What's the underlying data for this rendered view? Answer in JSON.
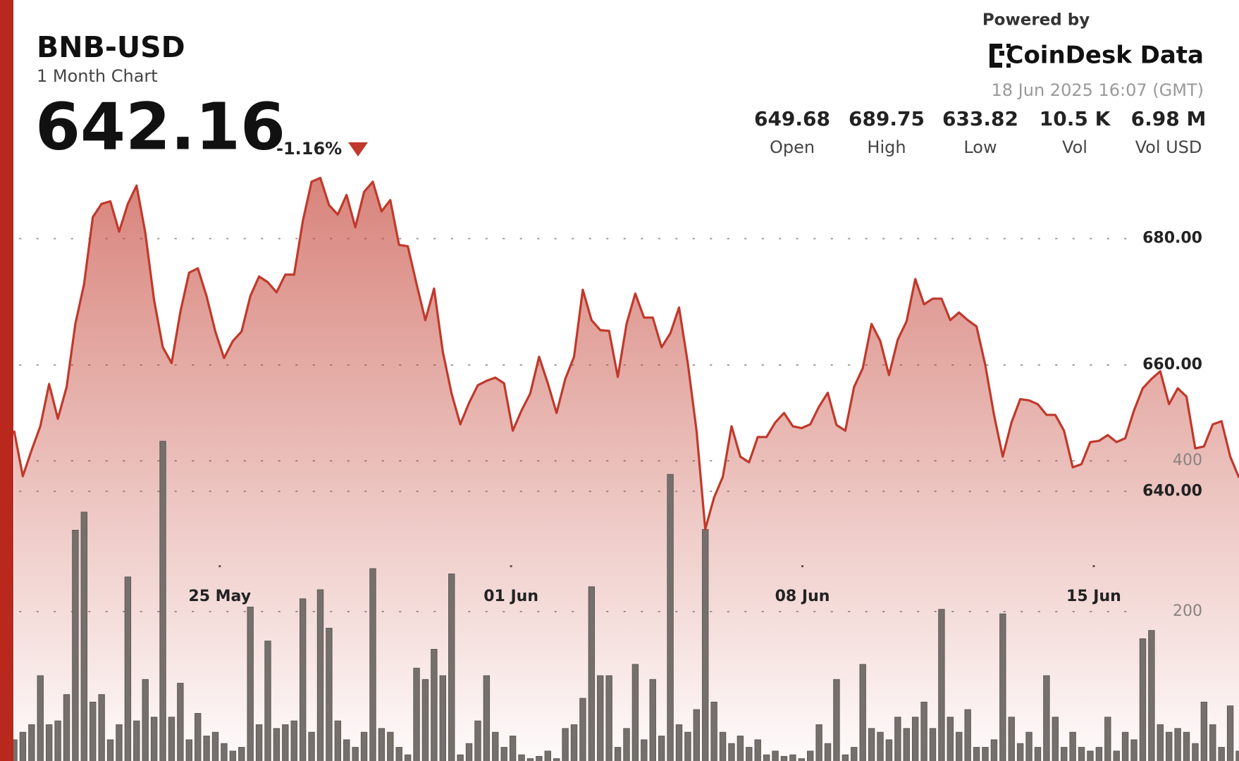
{
  "header": {
    "symbol": "BNB-USD",
    "subtitle": "1 Month Chart",
    "price": "642.16",
    "change": "-1.16%",
    "powered_by": "Powered by",
    "brand": "CoinDesk Data",
    "timestamp": "18 Jun 2025 16:07 (GMT)",
    "stats": [
      {
        "value": "649.68",
        "label": "Open"
      },
      {
        "value": "689.75",
        "label": "High"
      },
      {
        "value": "633.82",
        "label": "Low"
      },
      {
        "value": "10.5 K",
        "label": "Vol"
      },
      {
        "value": "6.98 M",
        "label": "Vol USD"
      }
    ]
  },
  "chart_data": {
    "type": "line",
    "xlim": [
      0,
      140
    ],
    "xticks": [
      {
        "value": 23.5,
        "label": "25 May"
      },
      {
        "value": 56.8,
        "label": "01 Jun"
      },
      {
        "value": 90.1,
        "label": "08 Jun"
      },
      {
        "value": 123.4,
        "label": "15 Jun"
      }
    ],
    "ylim": [
      600,
      692
    ],
    "yticks": [
      {
        "value": 640,
        "label": "640.00"
      },
      {
        "value": 660,
        "label": "660.00"
      },
      {
        "value": 680,
        "label": "680.00"
      }
    ],
    "y2lim": [
      0,
      600
    ],
    "y2ticks": [
      200,
      400
    ],
    "grid": true,
    "series": [
      {
        "type": "line",
        "color": "#c0392b",
        "values": [
          649.6,
          642.4,
          646.5,
          650.3,
          657.0,
          651.5,
          656.5,
          666.5,
          672.8,
          683.4,
          685.5,
          685.9,
          681.1,
          685.5,
          688.4,
          680.9,
          670.3,
          662.8,
          660.3,
          668.4,
          674.6,
          675.3,
          670.9,
          665.3,
          661.1,
          663.8,
          665.3,
          670.9,
          674.0,
          673.1,
          671.5,
          674.3,
          674.3,
          682.8,
          689.0,
          689.6,
          685.3,
          683.8,
          686.9,
          681.8,
          687.4,
          689.0,
          684.3,
          686.1,
          679.0,
          678.8,
          672.8,
          667.1,
          672.1,
          662.1,
          655.5,
          650.6,
          654.0,
          656.8,
          657.5,
          658.0,
          657.1,
          649.6,
          652.8,
          655.5,
          661.3,
          657.1,
          652.4,
          657.8,
          661.3,
          671.9,
          667.1,
          665.5,
          665.4,
          658.1,
          666.5,
          671.3,
          667.5,
          667.5,
          662.8,
          665.0,
          669.1,
          660.3,
          649.6,
          634.0,
          639.0,
          642.3,
          650.3,
          645.5,
          644.6,
          648.6,
          648.6,
          650.9,
          652.4,
          650.3,
          650.0,
          650.6,
          653.4,
          655.6,
          650.5,
          649.6,
          656.5,
          659.5,
          666.5,
          663.8,
          658.4,
          664.0,
          666.9,
          673.6,
          669.6,
          670.5,
          670.5,
          667.1,
          668.3,
          667.1,
          666.1,
          660.0,
          652.1,
          645.5,
          650.9,
          654.6,
          654.4,
          653.8,
          652.1,
          652.1,
          649.6,
          643.8,
          644.3,
          647.8,
          648.0,
          648.9,
          647.8,
          648.4,
          652.8,
          656.3,
          657.8,
          659.0,
          653.8,
          656.3,
          655.0,
          646.8,
          647.1,
          650.6,
          651.1,
          645.5,
          642.16
        ]
      },
      {
        "type": "bar",
        "axis": "y2",
        "color": "#76706c",
        "values": [
          30,
          40,
          50,
          115,
          50,
          55,
          90,
          308,
          332,
          80,
          90,
          30,
          50,
          246,
          55,
          110,
          60,
          426,
          60,
          105,
          30,
          65,
          35,
          40,
          25,
          15,
          20,
          206,
          50,
          161,
          45,
          50,
          55,
          217,
          40,
          229,
          178,
          55,
          30,
          20,
          40,
          257,
          45,
          40,
          20,
          10,
          125,
          110,
          150,
          115,
          250,
          10,
          25,
          55,
          115,
          40,
          20,
          35,
          10,
          5,
          8,
          15,
          5,
          45,
          50,
          85,
          233,
          115,
          115,
          20,
          45,
          130,
          30,
          110,
          35,
          382,
          50,
          40,
          70,
          309,
          80,
          40,
          25,
          35,
          20,
          30,
          10,
          15,
          8,
          10,
          5,
          15,
          50,
          25,
          110,
          10,
          20,
          130,
          45,
          40,
          30,
          60,
          45,
          60,
          80,
          45,
          203,
          60,
          40,
          70,
          20,
          20,
          30,
          197,
          60,
          25,
          40,
          20,
          115,
          60,
          20,
          40,
          20,
          15,
          20,
          60,
          15,
          40,
          30,
          164,
          175,
          50,
          40,
          45,
          40,
          25,
          80,
          50,
          20,
          75,
          15
        ]
      }
    ]
  }
}
